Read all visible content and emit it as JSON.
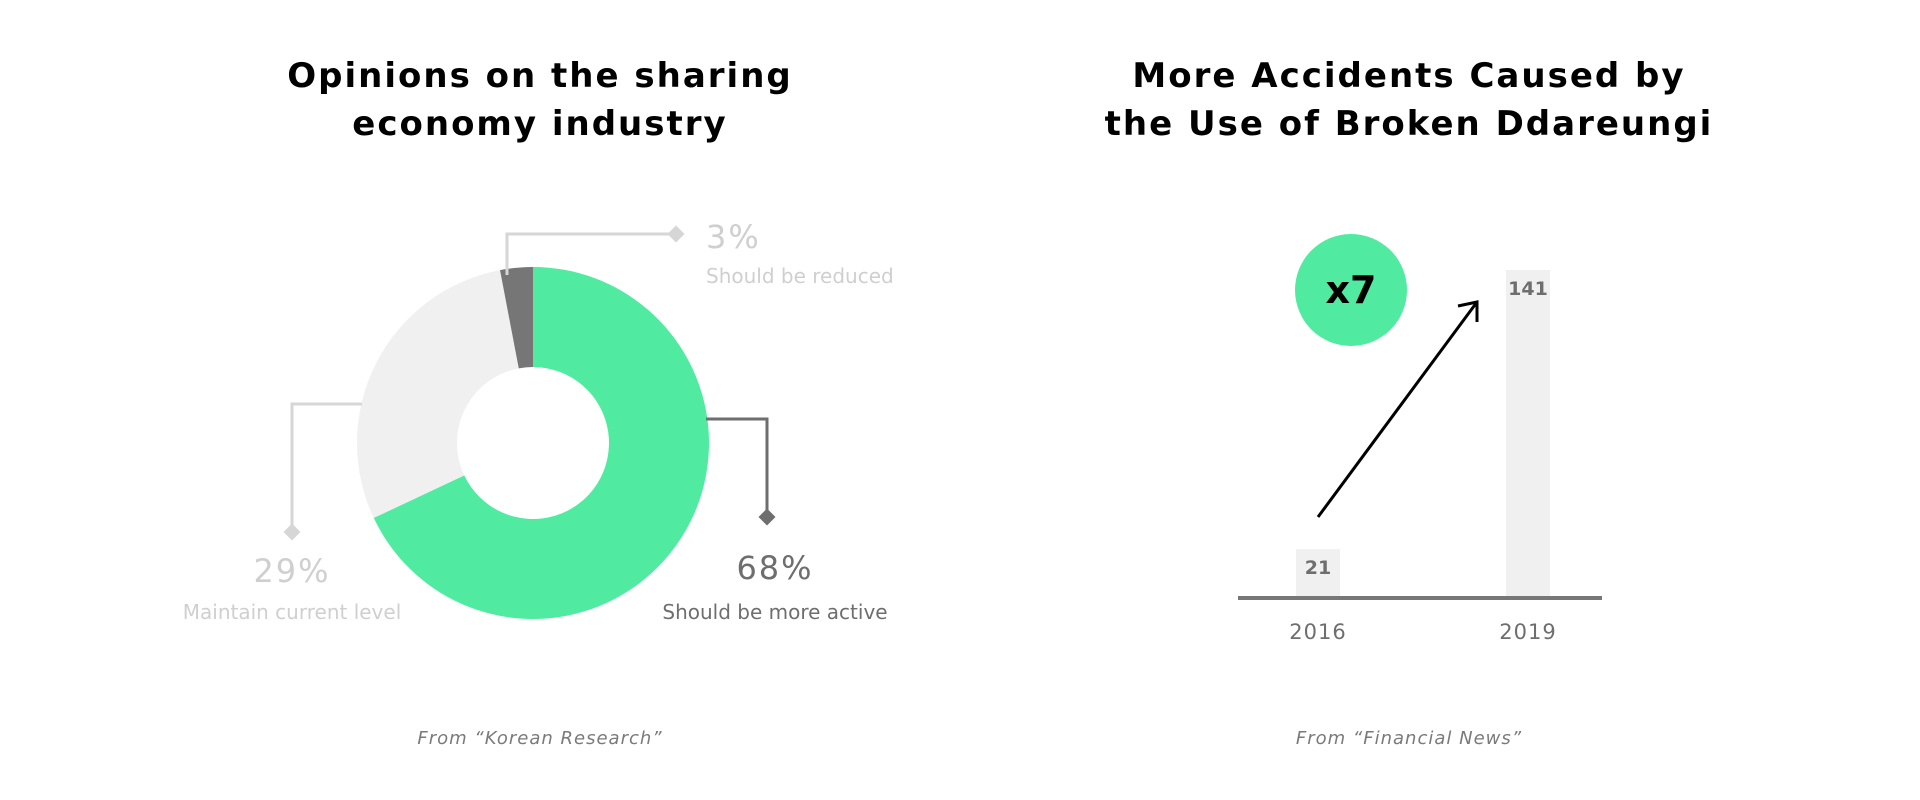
{
  "colors": {
    "accent_green": "#50eba0",
    "light_gray": "#f0f0f0",
    "dark_gray": "#767676",
    "label_light": "#cfcfcf",
    "label_dark": "#6e6e6e",
    "connector_light": "#d6d6d6",
    "connector_dark": "#6e6e6e",
    "axis": "#777777"
  },
  "icons": {
    "connector_marker": "diamond-icon",
    "growth_arrow": "arrow-up-right-icon"
  },
  "chart_data": [
    {
      "type": "pie",
      "variant": "donut",
      "title_lines": [
        "Opinions on the sharing",
        "economy industry"
      ],
      "slices": [
        {
          "label": "Should be more active",
          "percent_label": "68%",
          "value": 68,
          "color": "#50eba0"
        },
        {
          "label": "Maintain current level",
          "percent_label": "29%",
          "value": 29,
          "color": "#f0f0f0"
        },
        {
          "label": "Should be reduced",
          "percent_label": "3%",
          "value": 3,
          "color": "#767676"
        }
      ],
      "source": "From “Korean Research”"
    },
    {
      "type": "bar",
      "title_lines": [
        "More Accidents Caused by",
        "the Use of Broken Ddareungi"
      ],
      "categories": [
        "2016",
        "2019"
      ],
      "values": [
        21,
        141
      ],
      "value_labels": [
        "21",
        "141"
      ],
      "ylim": [
        0,
        150
      ],
      "bar_color": "#f0f0f0",
      "annotation": {
        "text": "x7",
        "color": "#50eba0"
      },
      "source": "From “Financial News”"
    }
  ]
}
